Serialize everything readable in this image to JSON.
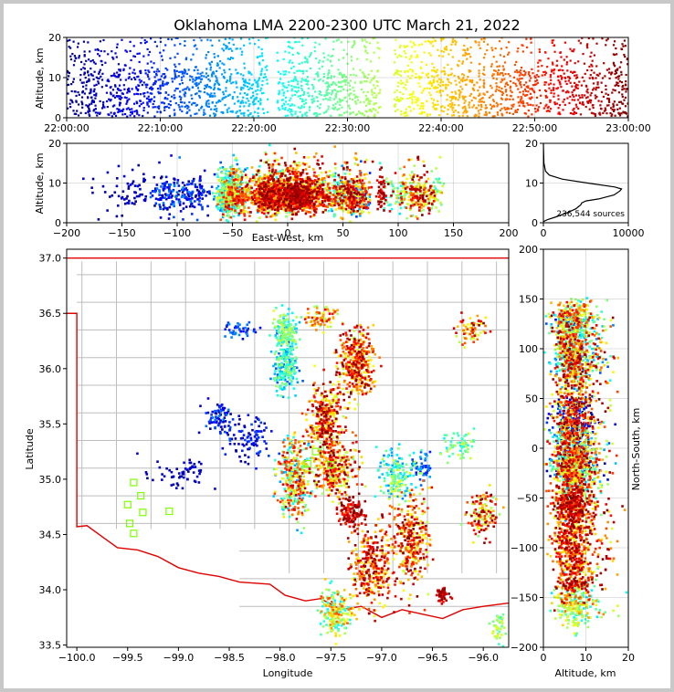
{
  "title": "Oklahoma LMA 2200-2300 UTC March 21, 2022",
  "colormap": [
    "#00008f",
    "#0000ff",
    "#0080ff",
    "#00ffff",
    "#80ff80",
    "#ffff00",
    "#ff8000",
    "#ff0000",
    "#800000"
  ],
  "border_color": "#e00000",
  "county_color": "#bdbdbd",
  "station_color": "#7fff00",
  "chart_data": [
    {
      "id": "time_height",
      "type": "scatter",
      "xlabel": "",
      "ylabel": "Altitude, km",
      "xlim": [
        "22:00:00",
        "23:00:00"
      ],
      "ylim": [
        0,
        20
      ],
      "xticks": [
        "22:00:00",
        "22:10:00",
        "22:20:00",
        "22:30:00",
        "22:40:00",
        "22:50:00",
        "23:00:00"
      ],
      "yticks": [
        "0",
        "10",
        "20"
      ],
      "color_by": "time",
      "gaps_minutes": [
        [
          21.5,
          22.5
        ],
        [
          33.5,
          35.0
        ]
      ]
    },
    {
      "id": "ew_altitude",
      "type": "scatter",
      "xlabel": "East-West, km",
      "ylabel": "Altitude, km",
      "xlim": [
        -200,
        200
      ],
      "ylim": [
        0,
        20
      ],
      "xticks": [
        "−200",
        "−150",
        "−100",
        "−50",
        "0",
        "50",
        "100",
        "150",
        "200"
      ],
      "yticks": [
        "0",
        "10",
        "20"
      ]
    },
    {
      "id": "altitude_histogram",
      "type": "line",
      "xlim": [
        0,
        10000
      ],
      "ylim": [
        0,
        20
      ],
      "xticks": [
        "0",
        "10000"
      ],
      "yticks": [
        "0",
        "10",
        "20"
      ],
      "annotation": "236,544 sources",
      "profile": [
        [
          0.3,
          20
        ],
        [
          0.8,
          500
        ],
        [
          1.5,
          1500
        ],
        [
          2.5,
          2800
        ],
        [
          3.5,
          3800
        ],
        [
          4.5,
          4400
        ],
        [
          5.0,
          4500
        ],
        [
          5.5,
          5000
        ],
        [
          6.0,
          6500
        ],
        [
          7.0,
          8300
        ],
        [
          8.0,
          9000
        ],
        [
          8.5,
          9200
        ],
        [
          9.0,
          8400
        ],
        [
          10.0,
          5200
        ],
        [
          11.0,
          2200
        ],
        [
          12.0,
          700
        ],
        [
          13.0,
          250
        ],
        [
          15.0,
          60
        ],
        [
          18.0,
          20
        ],
        [
          20.0,
          5
        ]
      ]
    },
    {
      "id": "plan_view",
      "type": "scatter",
      "xlabel": "Longitude",
      "ylabel": "Latitude",
      "xlim": [
        -100.1,
        -95.75
      ],
      "ylim": [
        33.48,
        37.08
      ],
      "xticks": [
        "−100.0",
        "−99.5",
        "−99.0",
        "−98.5",
        "−98.0",
        "−97.5",
        "−97.0",
        "−96.5",
        "−96.0"
      ],
      "yticks": [
        "33.5",
        "34.0",
        "34.5",
        "35.0",
        "35.5",
        "36.0",
        "36.5",
        "37.0"
      ],
      "stations": [
        [
          -99.44,
          34.97
        ],
        [
          -99.5,
          34.77
        ],
        [
          -99.37,
          34.85
        ],
        [
          -99.35,
          34.7
        ],
        [
          -99.48,
          34.6
        ],
        [
          -99.44,
          34.51
        ],
        [
          -99.09,
          34.71
        ],
        [
          -97.65,
          35.25
        ],
        [
          -97.73,
          35.14
        ],
        [
          -97.5,
          35.13
        ]
      ]
    },
    {
      "id": "ns_altitude",
      "type": "scatter",
      "xlabel": "Altitude, km",
      "ylabel": "North-South, km",
      "xlim": [
        0,
        20
      ],
      "ylim": [
        -200,
        200
      ],
      "xticks": [
        "0",
        "10",
        "20"
      ],
      "yticks": [
        "−200",
        "−150",
        "−100",
        "−50",
        "0",
        "50",
        "100",
        "150",
        "200"
      ]
    }
  ]
}
